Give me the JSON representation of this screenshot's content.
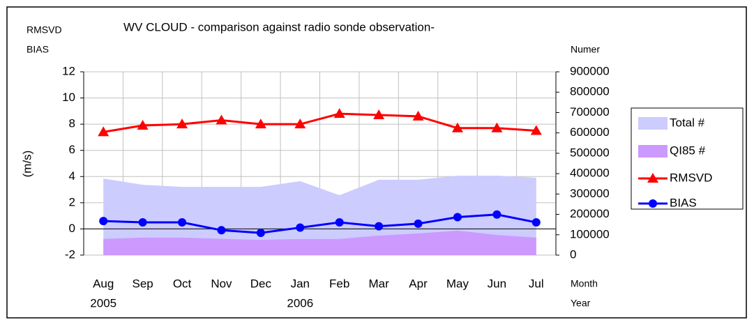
{
  "chart_data": {
    "type": "combo",
    "title": "WV CLOUD - comparison against radio sonde observation-",
    "y_label_top": "RMSVD",
    "y_label_top2": "BIAS",
    "y_label": "(m/s)",
    "y2_label": "Numer",
    "x_label": "Month",
    "x_label2": "Year",
    "categories": [
      "Aug",
      "Sep",
      "Oct",
      "Nov",
      "Dec",
      "Jan",
      "Feb",
      "Mar",
      "Apr",
      "May",
      "Jun",
      "Jul"
    ],
    "years": [
      "2005",
      null,
      null,
      null,
      null,
      "2006",
      null,
      null,
      null,
      null,
      null,
      null
    ],
    "ylim": [
      -2,
      12
    ],
    "yticks": [
      -2,
      0,
      2,
      4,
      6,
      8,
      10,
      12
    ],
    "y2lim": [
      0,
      900000
    ],
    "y2ticks": [
      0,
      100000,
      200000,
      300000,
      400000,
      500000,
      600000,
      700000,
      800000,
      900000
    ],
    "grid": true,
    "series": [
      {
        "name": "Total #",
        "type": "area",
        "axis": "y2",
        "color": "#ccccff",
        "values": [
          376000,
          345000,
          335000,
          335000,
          335000,
          363000,
          294000,
          370000,
          370000,
          390000,
          390000,
          380000
        ]
      },
      {
        "name": "QI85 #",
        "type": "area",
        "axis": "y2",
        "color": "#cc99ff",
        "values": [
          79000,
          86000,
          86000,
          80000,
          75000,
          79000,
          79000,
          96000,
          106000,
          120000,
          99000,
          86000
        ]
      },
      {
        "name": "RMSVD",
        "type": "line",
        "marker": "triangle",
        "color": "#ff0000",
        "values": [
          7.4,
          7.9,
          8.0,
          8.3,
          8.0,
          8.0,
          8.8,
          8.7,
          8.6,
          7.7,
          7.7,
          7.5
        ]
      },
      {
        "name": "BIAS",
        "type": "line",
        "marker": "circle",
        "color": "#0000ff",
        "values": [
          0.6,
          0.5,
          0.5,
          -0.1,
          -0.3,
          0.1,
          0.5,
          0.2,
          0.4,
          0.9,
          1.1,
          0.5
        ]
      }
    ]
  }
}
